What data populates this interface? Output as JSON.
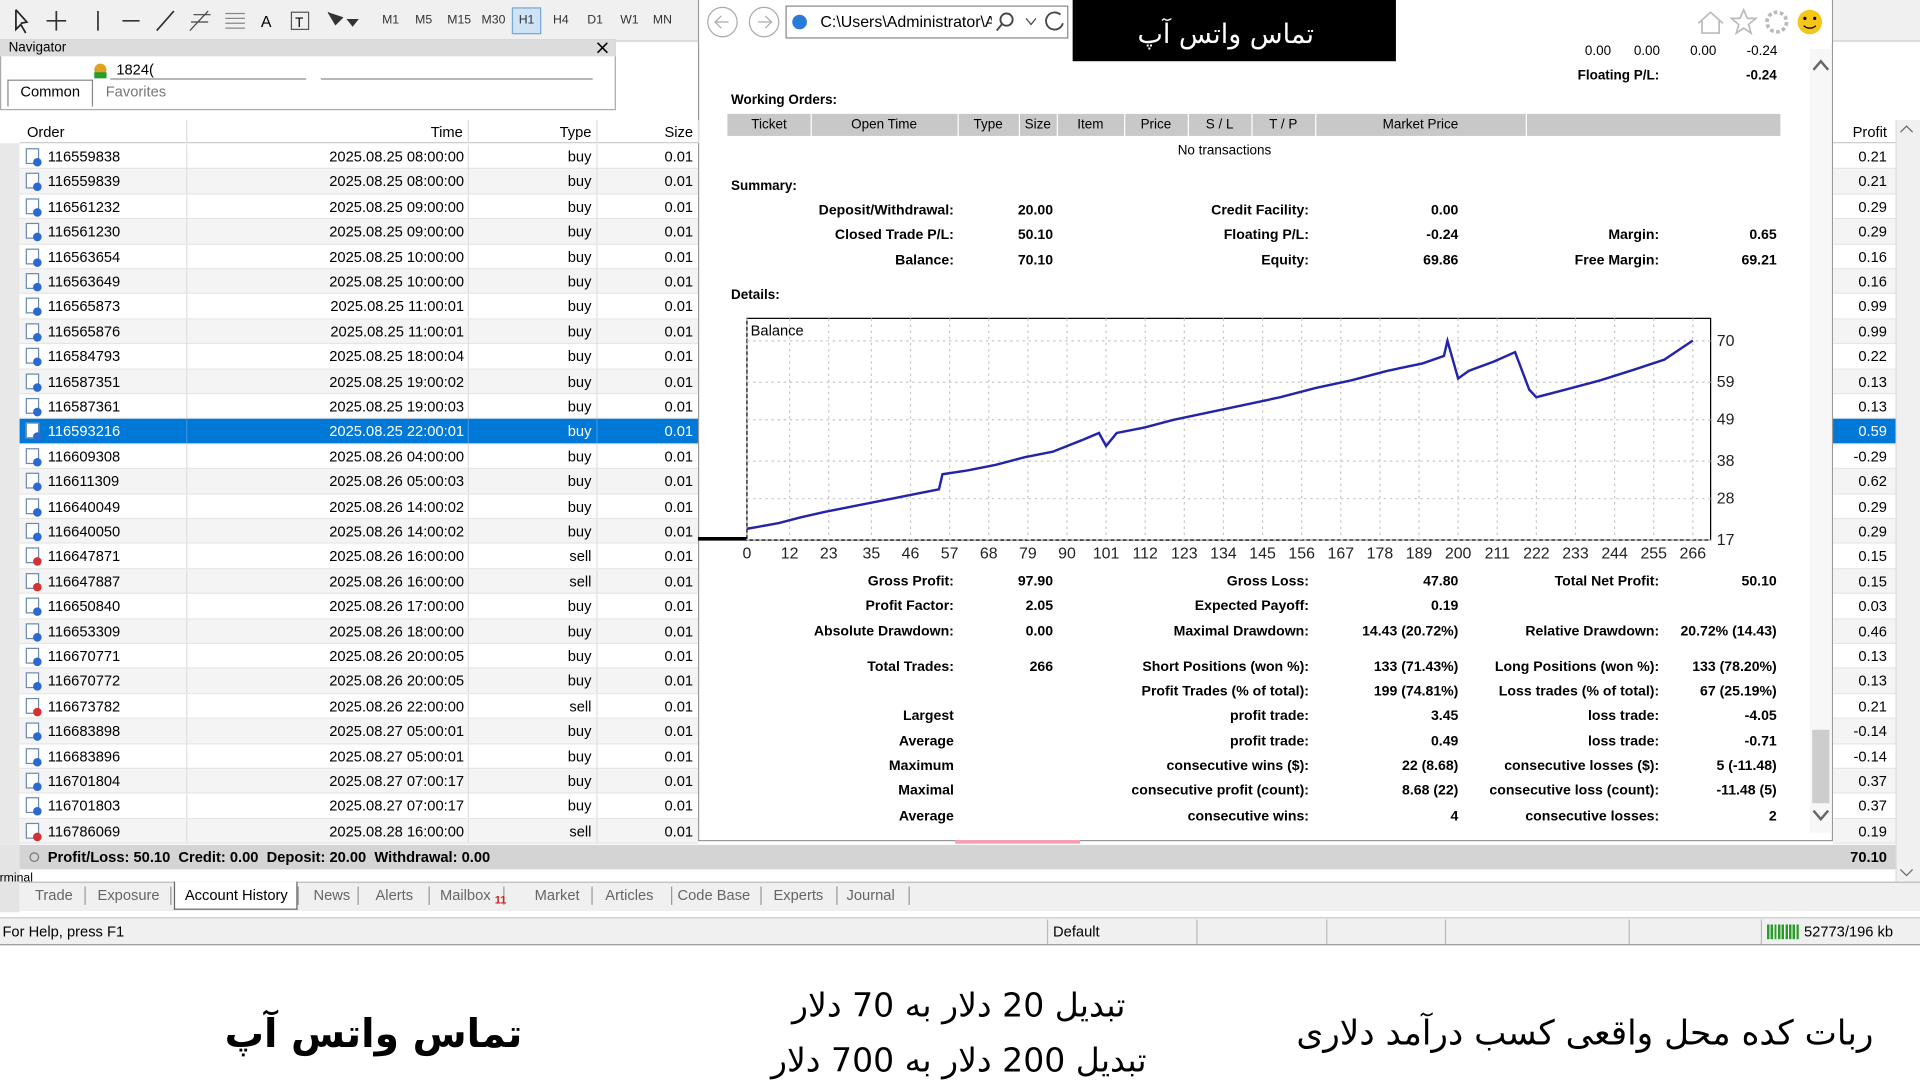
{
  "toolbar": {
    "timeframes": [
      "M1",
      "M5",
      "M15",
      "M30",
      "H1",
      "H4",
      "D1",
      "W1",
      "MN"
    ],
    "active_timeframe": "H1"
  },
  "browser": {
    "address": "C:\\Users\\Administrator\\Ap",
    "banner": "تماس واتس آپ"
  },
  "navigator": {
    "title": "Navigator",
    "account": "1824(",
    "tabs": [
      "Common",
      "Favorites"
    ]
  },
  "orders": {
    "columns": [
      "Order",
      "Time",
      "Type",
      "Size"
    ],
    "profit_column": "Profit",
    "selected_order": "116593216",
    "rows": [
      [
        "116559838",
        "2025.08.25 08:00:00",
        "buy",
        "0.01"
      ],
      [
        "116559839",
        "2025.08.25 08:00:00",
        "buy",
        "0.01"
      ],
      [
        "116561232",
        "2025.08.25 09:00:00",
        "buy",
        "0.01"
      ],
      [
        "116561230",
        "2025.08.25 09:00:00",
        "buy",
        "0.01"
      ],
      [
        "116563654",
        "2025.08.25 10:00:00",
        "buy",
        "0.01"
      ],
      [
        "116563649",
        "2025.08.25 10:00:00",
        "buy",
        "0.01"
      ],
      [
        "116565873",
        "2025.08.25 11:00:01",
        "buy",
        "0.01"
      ],
      [
        "116565876",
        "2025.08.25 11:00:01",
        "buy",
        "0.01"
      ],
      [
        "116584793",
        "2025.08.25 18:00:04",
        "buy",
        "0.01"
      ],
      [
        "116587351",
        "2025.08.25 19:00:02",
        "buy",
        "0.01"
      ],
      [
        "116587361",
        "2025.08.25 19:00:03",
        "buy",
        "0.01"
      ],
      [
        "116593216",
        "2025.08.25 22:00:01",
        "buy",
        "0.01"
      ],
      [
        "116609308",
        "2025.08.26 04:00:00",
        "buy",
        "0.01"
      ],
      [
        "116611309",
        "2025.08.26 05:00:03",
        "buy",
        "0.01"
      ],
      [
        "116640049",
        "2025.08.26 14:00:02",
        "buy",
        "0.01"
      ],
      [
        "116640050",
        "2025.08.26 14:00:02",
        "buy",
        "0.01"
      ],
      [
        "116647871",
        "2025.08.26 16:00:00",
        "sell",
        "0.01"
      ],
      [
        "116647887",
        "2025.08.26 16:00:00",
        "sell",
        "0.01"
      ],
      [
        "116650840",
        "2025.08.26 17:00:00",
        "buy",
        "0.01"
      ],
      [
        "116653309",
        "2025.08.26 18:00:00",
        "buy",
        "0.01"
      ],
      [
        "116670771",
        "2025.08.26 20:00:05",
        "buy",
        "0.01"
      ],
      [
        "116670772",
        "2025.08.26 20:00:05",
        "buy",
        "0.01"
      ],
      [
        "116673782",
        "2025.08.26 22:00:00",
        "sell",
        "0.01"
      ],
      [
        "116683898",
        "2025.08.27 05:00:01",
        "buy",
        "0.01"
      ],
      [
        "116683896",
        "2025.08.27 05:00:01",
        "buy",
        "0.01"
      ],
      [
        "116701804",
        "2025.08.27 07:00:17",
        "buy",
        "0.01"
      ],
      [
        "116701803",
        "2025.08.27 07:00:17",
        "buy",
        "0.01"
      ],
      [
        "116786069",
        "2025.08.28 16:00:00",
        "sell",
        "0.01"
      ]
    ],
    "profits": [
      "0.21",
      "0.21",
      "0.29",
      "0.29",
      "0.16",
      "0.16",
      "0.99",
      "0.99",
      "0.22",
      "0.13",
      "0.13",
      "0.59",
      "-0.29",
      "0.62",
      "0.29",
      "0.29",
      "0.15",
      "0.15",
      "0.03",
      "0.46",
      "0.13",
      "0.13",
      "0.21",
      "-0.14",
      "-0.14",
      "0.37",
      "0.37",
      "0.19"
    ]
  },
  "totals": {
    "summary": "Profit/Loss: 50.10  Credit: 0.00  Deposit: 20.00  Withdrawal: 0.00",
    "total": "70.10"
  },
  "terminal": {
    "label": "Terminal",
    "tabs": [
      "Trade",
      "Exposure",
      "Account History",
      "News",
      "Alerts",
      "Mailbox",
      "Market",
      "Articles",
      "Code Base",
      "Experts",
      "Journal"
    ],
    "active_tab": "Account History",
    "mailbox_badge": "11"
  },
  "status": {
    "help": "For Help, press F1",
    "profile": "Default",
    "memory": "52773/196 kb"
  },
  "report": {
    "top_values": [
      "0.00",
      "0.00",
      "0.00",
      "-0.24"
    ],
    "floating_label": "Floating P/L:",
    "floating_value": "-0.24",
    "working_orders_title": "Working Orders:",
    "working_orders_columns": [
      "Ticket",
      "Open Time",
      "Type",
      "Size",
      "Item",
      "Price",
      "S / L",
      "T / P",
      "Market Price"
    ],
    "no_transactions": "No transactions",
    "summary_title": "Summary:",
    "details_title": "Details:",
    "summary_rows": [
      {
        "left": {
          "label": "Deposit/Withdrawal:",
          "value": "20.00"
        },
        "middle": {
          "label": "Credit Facility:",
          "value": "0.00"
        }
      },
      {
        "left": {
          "label": "Closed Trade P/L:",
          "value": "50.10"
        },
        "middle": {
          "label": "Floating P/L:",
          "value": "-0.24"
        },
        "right": {
          "label": "Margin:",
          "value": "0.65"
        }
      },
      {
        "left": {
          "label": "Balance:",
          "value": "70.10"
        },
        "middle": {
          "label": "Equity:",
          "value": "69.86"
        },
        "right": {
          "label": "Free Margin:",
          "value": "69.21"
        }
      }
    ],
    "stats_rows": [
      {
        "left": {
          "label": "Gross Profit:",
          "value": "97.90"
        },
        "middle": {
          "label": "Gross Loss:",
          "value": "47.80"
        },
        "right": {
          "label": "Total Net Profit:",
          "value": "50.10"
        }
      },
      {
        "left": {
          "label": "Profit Factor:",
          "value": "2.05"
        },
        "middle": {
          "label": "Expected Payoff:",
          "value": "0.19"
        }
      },
      {
        "left": {
          "label": "Absolute Drawdown:",
          "value": "0.00"
        },
        "middle": {
          "label": "Maximal Drawdown:",
          "value": "14.43 (20.72%)"
        },
        "right": {
          "label": "Relative Drawdown:",
          "value": "20.72% (14.43)"
        }
      },
      {
        "left": {
          "label": "Total Trades:",
          "value": "266"
        },
        "middle": {
          "label": "Short Positions (won %):",
          "value": "133 (71.43%)"
        },
        "right": {
          "label": "Long Positions (won %):",
          "value": "133 (78.20%)"
        }
      },
      {
        "middle": {
          "label": "Profit Trades (% of total):",
          "value": "199 (74.81%)"
        },
        "right": {
          "label": "Loss trades (% of total):",
          "value": "67 (25.19%)"
        }
      },
      {
        "left": {
          "label": "Largest"
        },
        "middle": {
          "label": "profit trade:",
          "value": "3.45"
        },
        "right": {
          "label": "loss trade:",
          "value": "-4.05"
        }
      },
      {
        "left": {
          "label": "Average"
        },
        "middle": {
          "label": "profit trade:",
          "value": "0.49"
        },
        "right": {
          "label": "loss trade:",
          "value": "-0.71"
        }
      },
      {
        "left": {
          "label": "Maximum"
        },
        "middle": {
          "label": "consecutive wins ($):",
          "value": "22 (8.68)"
        },
        "right": {
          "label": "consecutive losses ($):",
          "value": "5 (-11.48)"
        }
      },
      {
        "left": {
          "label": "Maximal"
        },
        "middle": {
          "label": "consecutive profit (count):",
          "value": "8.68 (22)"
        },
        "right": {
          "label": "consecutive loss (count):",
          "value": "-11.48 (5)"
        }
      },
      {
        "left": {
          "label": "Average"
        },
        "middle": {
          "label": "consecutive wins:",
          "value": "4"
        },
        "right": {
          "label": "consecutive losses:",
          "value": "2"
        }
      }
    ]
  },
  "chart_data": {
    "type": "line",
    "x": [
      0,
      3,
      9,
      15,
      22,
      30,
      38,
      46,
      54,
      55,
      62,
      70,
      78,
      86,
      94,
      99,
      101,
      104,
      112,
      120,
      130,
      140,
      150,
      160,
      170,
      180,
      190,
      196,
      197,
      200,
      203,
      210,
      216,
      220,
      222,
      230,
      240,
      250,
      258,
      266
    ],
    "series": [
      {
        "name": "Balance",
        "color": "#2424a8",
        "values": [
          20,
          20.5,
          21.5,
          23,
          24.5,
          26,
          27.5,
          29,
          30.5,
          34.5,
          35.5,
          37,
          39,
          40.5,
          43.5,
          45.5,
          42,
          45.5,
          47,
          49,
          51,
          53,
          55,
          57.5,
          59.5,
          62,
          64,
          66,
          70,
          60,
          62,
          64.5,
          67,
          57,
          55,
          57,
          59.5,
          62.5,
          65,
          70.1
        ]
      }
    ],
    "xlim": [
      0,
      271
    ],
    "ylim": [
      17,
      76
    ],
    "xticks": [
      0,
      12,
      23,
      35,
      46,
      57,
      68,
      79,
      90,
      101,
      112,
      123,
      134,
      145,
      156,
      167,
      178,
      189,
      200,
      211,
      222,
      233,
      244,
      255,
      266
    ],
    "yticks": [
      17,
      28,
      38,
      49,
      59,
      70
    ],
    "grid": true
  },
  "captions": {
    "right": "ربات کده محل واقعی کسب درآمد دلاری",
    "middle": [
      "تبدیل 20 دلار به 70 دلار",
      "تبدیل 200 دلار به 700 دلار"
    ],
    "left": "تماس واتس آپ"
  }
}
